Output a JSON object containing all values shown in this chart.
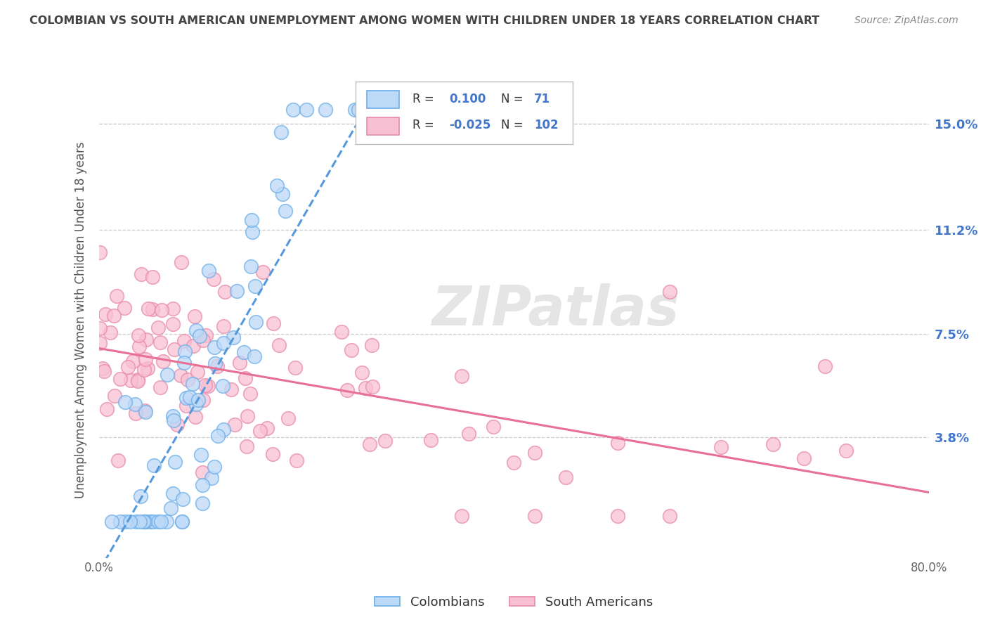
{
  "title": "COLOMBIAN VS SOUTH AMERICAN UNEMPLOYMENT AMONG WOMEN WITH CHILDREN UNDER 18 YEARS CORRELATION CHART",
  "source": "Source: ZipAtlas.com",
  "ylabel": "Unemployment Among Women with Children Under 18 years",
  "xlim": [
    0.0,
    0.8
  ],
  "ylim": [
    -0.005,
    0.165
  ],
  "ytick_values": [
    0.038,
    0.075,
    0.112,
    0.15
  ],
  "ytick_labels": [
    "3.8%",
    "7.5%",
    "11.2%",
    "15.0%"
  ],
  "colombians_R": "0.100",
  "colombians_N": "71",
  "south_americans_R": "-0.025",
  "south_americans_N": "102",
  "color_colombians_fill": "#BDD9F8",
  "color_colombians_edge": "#6AAEE8",
  "color_south_americans_fill": "#F9C0D4",
  "color_south_americans_edge": "#E88AAA",
  "line_color_colombians": "#5599DD",
  "line_color_south_americans": "#E87095",
  "grid_color": "#CCCCCC",
  "watermark_text": "ZIPatlas",
  "watermark_color": "#CCCCCC",
  "background_color": "#FFFFFF",
  "tick_label_color": "#4477CC",
  "title_color": "#444444",
  "source_color": "#888888",
  "ylabel_color": "#555555"
}
